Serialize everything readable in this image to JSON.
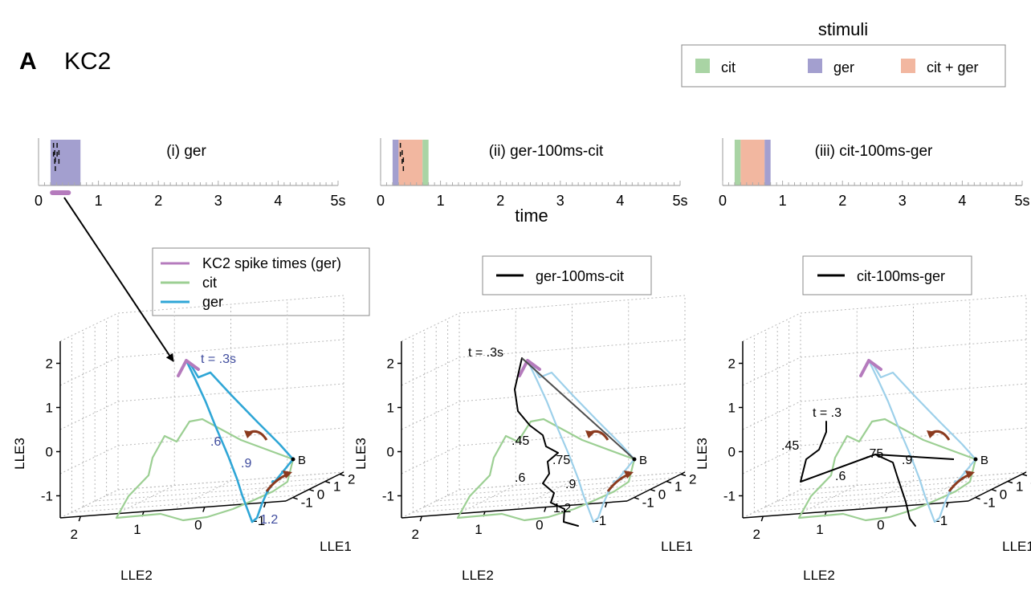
{
  "panel": {
    "letter": "A",
    "cell": "KC2"
  },
  "stimuli": {
    "title": "stimuli",
    "items": [
      {
        "label": "cit",
        "color": "#a9d4a4"
      },
      {
        "label": "ger",
        "color": "#a39fcf"
      },
      {
        "label": "cit + ger",
        "color": "#f2b7a0"
      }
    ]
  },
  "timeline": {
    "xlabel": "time",
    "ticks": [
      {
        "label": "0",
        "t": 0
      },
      {
        "label": "1",
        "t": 1
      },
      {
        "label": "2",
        "t": 2
      },
      {
        "label": "3",
        "t": 3
      },
      {
        "label": "4",
        "t": 4
      },
      {
        "label": "5s",
        "t": 5
      }
    ],
    "panels": [
      {
        "title": "(i)   ger",
        "stim": [
          {
            "from": 0.2,
            "to": 0.7,
            "kind": "ger"
          }
        ],
        "spikes": [
          0.25,
          0.27,
          0.28,
          0.31,
          0.34
        ],
        "spike_bar": [
          0.23,
          0.5
        ]
      },
      {
        "title": "(ii)   ger-100ms-cit",
        "stim": [
          {
            "from": 0.2,
            "to": 0.3,
            "kind": "ger"
          },
          {
            "from": 0.3,
            "to": 0.7,
            "kind": "cit+ger"
          },
          {
            "from": 0.7,
            "to": 0.8,
            "kind": "cit"
          }
        ],
        "spikes": [
          0.33,
          0.36,
          0.38
        ]
      },
      {
        "title": "(iii)   cit-100ms-ger",
        "stim": [
          {
            "from": 0.2,
            "to": 0.3,
            "kind": "cit"
          },
          {
            "from": 0.3,
            "to": 0.7,
            "kind": "cit+ger"
          },
          {
            "from": 0.7,
            "to": 0.8,
            "kind": "ger"
          }
        ],
        "spikes": []
      }
    ]
  },
  "legends": {
    "main": [
      {
        "label": "KC2 spike times (ger)",
        "color": "#b57bbd"
      },
      {
        "label": "cit",
        "color": "#9ccf93"
      },
      {
        "label": "ger",
        "color": "#2fa6d6"
      }
    ],
    "ii": {
      "label": "ger-100ms-cit",
      "color": "#000000"
    },
    "iii": {
      "label": "cit-100ms-ger",
      "color": "#000000"
    }
  },
  "chart_data": {
    "type": "line",
    "axes": {
      "x": {
        "label": "LLE1",
        "ticks": [
          "-1",
          "0",
          "1",
          "2"
        ]
      },
      "y": {
        "label": "LLE2",
        "ticks": [
          "2",
          "1",
          "0",
          "-1"
        ]
      },
      "z": {
        "label": "LLE3",
        "ticks": [
          "-1",
          "0",
          "1",
          "2"
        ]
      }
    },
    "baseline_label": "B",
    "colors": {
      "cit": "#9ccf93",
      "ger": "#2fa6d6",
      "ger_faded": "#9dd0ea",
      "spike": "#b57bbd",
      "mix": "#000000",
      "arrow": "#8b3a1e"
    },
    "panels": [
      {
        "name": "(i)",
        "labels": [
          {
            "text": "t = .3s"
          },
          {
            "text": ".6"
          },
          {
            "text": ".9"
          },
          {
            "text": "1.2"
          }
        ]
      },
      {
        "name": "(ii)",
        "labels": [
          {
            "text": "t = .3s"
          },
          {
            "text": ".45"
          },
          {
            "text": ".75"
          },
          {
            "text": ".6"
          },
          {
            "text": ".9"
          },
          {
            "text": "1.2"
          }
        ]
      },
      {
        "name": "(iii)",
        "labels": [
          {
            "text": "t = .3"
          },
          {
            "text": ".45"
          },
          {
            "text": ".75"
          },
          {
            "text": ".9"
          },
          {
            "text": ".6"
          }
        ]
      }
    ]
  }
}
